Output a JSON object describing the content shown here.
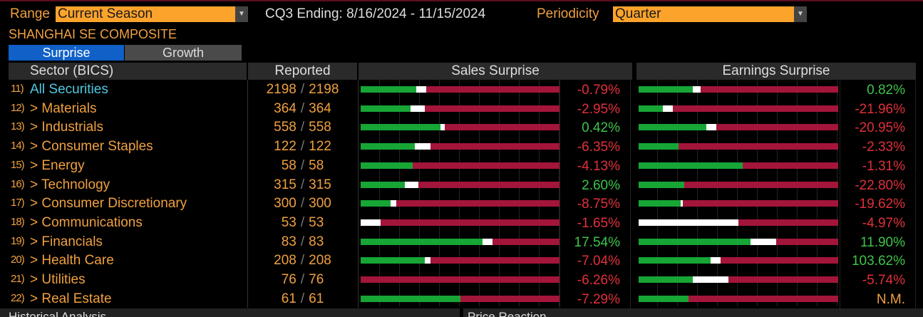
{
  "header": {
    "range_label": "Range",
    "range_value": "Current Season",
    "period_text": "CQ3 Ending: 8/16/2024 - 11/15/2024",
    "periodicity_label": "Periodicity",
    "periodicity_value": "Quarter",
    "index_name": "SHANGHAI SE COMPOSITE"
  },
  "tabs": [
    {
      "label": "Surprise",
      "active": true
    },
    {
      "label": "Growth",
      "active": false
    }
  ],
  "columns": {
    "sector": "Sector (BICS)",
    "reported": "Reported",
    "sales": "Sales Surprise",
    "earnings": "Earnings Surprise"
  },
  "colors": {
    "beat": "#17a535",
    "inline": "#ffffff",
    "miss": "#a3153a",
    "accent": "#fca32c"
  },
  "rows": [
    {
      "num": "11)",
      "name": "All Securities",
      "reported": "2198",
      "total": "2198",
      "sales_beat": 28,
      "sales_inline": 5,
      "sales": "-0.79%",
      "sales_sign": "neg",
      "earn_beat": 27,
      "earn_inline": 4,
      "earnings": "0.82%",
      "earn_sign": "pos"
    },
    {
      "num": "12)",
      "name": "> Materials",
      "reported": "364",
      "total": "364",
      "sales_beat": 25,
      "sales_inline": 7,
      "sales": "-2.95%",
      "sales_sign": "neg",
      "earn_beat": 12,
      "earn_inline": 5,
      "earnings": "-21.96%",
      "earn_sign": "neg"
    },
    {
      "num": "13)",
      "name": "> Industrials",
      "reported": "558",
      "total": "558",
      "sales_beat": 40,
      "sales_inline": 2,
      "sales": "0.42%",
      "sales_sign": "pos",
      "earn_beat": 34,
      "earn_inline": 5,
      "earnings": "-20.95%",
      "earn_sign": "neg"
    },
    {
      "num": "14)",
      "name": "> Consumer Staples",
      "reported": "122",
      "total": "122",
      "sales_beat": 27,
      "sales_inline": 8,
      "sales": "-6.35%",
      "sales_sign": "neg",
      "earn_beat": 20,
      "earn_inline": 0,
      "earnings": "-2.33%",
      "earn_sign": "neg"
    },
    {
      "num": "15)",
      "name": "> Energy",
      "reported": "58",
      "total": "58",
      "sales_beat": 26,
      "sales_inline": 0,
      "sales": "-4.13%",
      "sales_sign": "neg",
      "earn_beat": 52,
      "earn_inline": 0,
      "earnings": "-1.31%",
      "earn_sign": "neg"
    },
    {
      "num": "16)",
      "name": "> Technology",
      "reported": "315",
      "total": "315",
      "sales_beat": 22,
      "sales_inline": 7,
      "sales": "2.60%",
      "sales_sign": "pos",
      "earn_beat": 23,
      "earn_inline": 0,
      "earnings": "-22.80%",
      "earn_sign": "neg"
    },
    {
      "num": "17)",
      "name": "> Consumer Discretionary",
      "reported": "300",
      "total": "300",
      "sales_beat": 15,
      "sales_inline": 3,
      "sales": "-8.75%",
      "sales_sign": "neg",
      "earn_beat": 21,
      "earn_inline": 1,
      "earnings": "-19.62%",
      "earn_sign": "neg"
    },
    {
      "num": "18)",
      "name": "> Communications",
      "reported": "53",
      "total": "53",
      "sales_beat": 0,
      "sales_inline": 10,
      "sales": "-1.65%",
      "sales_sign": "neg",
      "earn_beat": 0,
      "earn_inline": 50,
      "earnings": "-4.97%",
      "earn_sign": "neg"
    },
    {
      "num": "19)",
      "name": "> Financials",
      "reported": "83",
      "total": "83",
      "sales_beat": 61,
      "sales_inline": 5,
      "sales": "17.54%",
      "sales_sign": "pos",
      "earn_beat": 56,
      "earn_inline": 13,
      "earnings": "11.90%",
      "earn_sign": "pos"
    },
    {
      "num": "20)",
      "name": "> Health Care",
      "reported": "208",
      "total": "208",
      "sales_beat": 32,
      "sales_inline": 3,
      "sales": "-7.04%",
      "sales_sign": "neg",
      "earn_beat": 36,
      "earn_inline": 5,
      "earnings": "103.62%",
      "earn_sign": "pos"
    },
    {
      "num": "21)",
      "name": "> Utilities",
      "reported": "76",
      "total": "76",
      "sales_beat": 0,
      "sales_inline": 0,
      "sales": "-6.26%",
      "sales_sign": "neg",
      "earn_beat": 27,
      "earn_inline": 18,
      "earnings": "-5.74%",
      "earn_sign": "neg"
    },
    {
      "num": "22)",
      "name": "> Real Estate",
      "reported": "61",
      "total": "61",
      "sales_beat": 50,
      "sales_inline": 0,
      "sales": "-7.29%",
      "sales_sign": "neg",
      "earn_beat": 25,
      "earn_inline": 0,
      "earnings": "N.M.",
      "earn_sign": "nm"
    }
  ],
  "footer": {
    "left": "Historical Analysis",
    "right": "Price Reaction"
  }
}
